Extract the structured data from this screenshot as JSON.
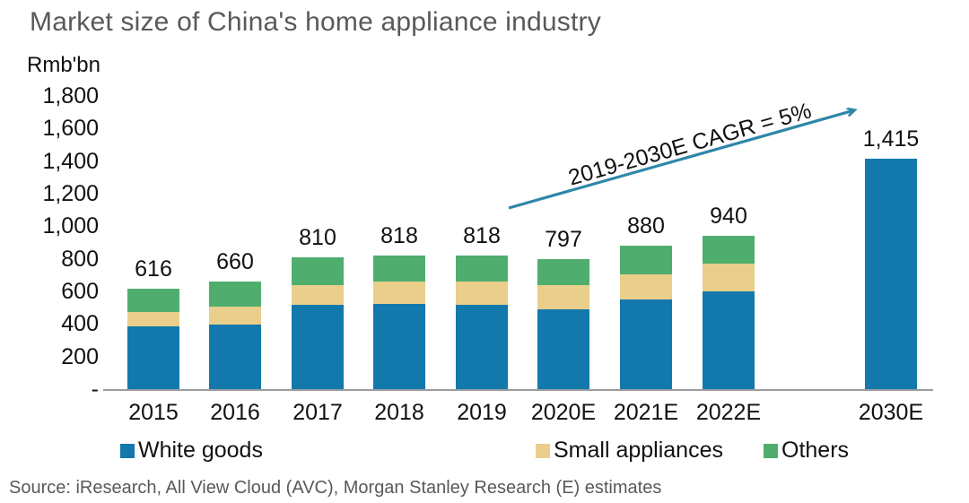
{
  "title": "Market size of China's home appliance industry",
  "unit_label": "Rmb'bn",
  "source": "Source: iResearch, All View Cloud (AVC), Morgan Stanley Research (E) estimates",
  "annotation": {
    "text": "2019-2030E CAGR = 5%"
  },
  "colors": {
    "white_goods": "#1379AC",
    "small_appliances": "#E9CE8C",
    "others": "#4FAE6D",
    "arrow": "#2E86A8",
    "axis": "#9C9C9C",
    "title_text": "#595959",
    "label_text": "#111111"
  },
  "chart_data": {
    "type": "bar",
    "stacked": true,
    "title": "Market size of China's home appliance industry",
    "ylabel": "Rmb'bn",
    "xlabel": "",
    "ylim": [
      0,
      1800
    ],
    "grid": false,
    "legend_position": "bottom",
    "y_ticks": [
      "1,800",
      "1,600",
      "1,400",
      "1,200",
      "1,000",
      "800",
      "600",
      "400",
      "200",
      "-"
    ],
    "categories": [
      "2015",
      "2016",
      "2017",
      "2018",
      "2019",
      "2020E",
      "2021E",
      "2022E",
      "2030E"
    ],
    "series": [
      {
        "name": "White goods",
        "color": "#1379AC",
        "values": [
          385,
          395,
          515,
          525,
          520,
          492,
          550,
          602,
          1415
        ]
      },
      {
        "name": "Small appliances",
        "color": "#E9CE8C",
        "values": [
          88,
          110,
          122,
          138,
          143,
          144,
          154,
          166,
          0
        ]
      },
      {
        "name": "Others",
        "color": "#4FAE6D",
        "values": [
          143,
          155,
          173,
          155,
          155,
          161,
          176,
          172,
          0
        ]
      }
    ],
    "totals": [
      616,
      660,
      810,
      818,
      818,
      797,
      880,
      940,
      1415
    ],
    "total_labels": [
      "616",
      "660",
      "810",
      "818",
      "818",
      "797",
      "880",
      "940",
      "1,415"
    ],
    "annotation": "2019-2030E CAGR = 5%"
  }
}
